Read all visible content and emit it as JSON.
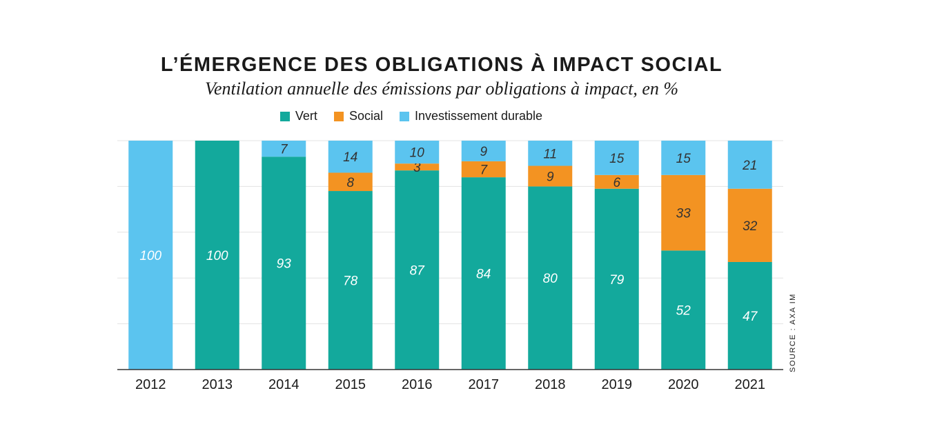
{
  "title": "L’ÉMERGENCE DES OBLIGATIONS À IMPACT SOCIAL",
  "subtitle": "Ventilation annuelle des émissions par obligations à impact, en %",
  "source": "SOURCE : AXA IM",
  "colors": {
    "vert": "#13a99c",
    "social": "#f39322",
    "durable": "#5bc4ef",
    "grid": "#e3e3e3",
    "axis": "#333333"
  },
  "legend": [
    {
      "label": "Vert",
      "color": "#13a99c"
    },
    {
      "label": "Social",
      "color": "#f39322"
    },
    {
      "label": "Investissement durable",
      "color": "#5bc4ef"
    }
  ],
  "chart_data": {
    "type": "bar",
    "stacked": true,
    "categories": [
      "2012",
      "2013",
      "2014",
      "2015",
      "2016",
      "2017",
      "2018",
      "2019",
      "2020",
      "2021"
    ],
    "series": [
      {
        "name": "Vert",
        "values": [
          0,
          100,
          93,
          78,
          87,
          84,
          80,
          79,
          52,
          47
        ]
      },
      {
        "name": "Social",
        "values": [
          0,
          0,
          0,
          8,
          3,
          7,
          9,
          6,
          33,
          32
        ]
      },
      {
        "name": "Investissement durable",
        "values": [
          100,
          0,
          7,
          14,
          10,
          9,
          11,
          15,
          15,
          21
        ]
      }
    ],
    "ylim": [
      0,
      100
    ],
    "grid": true,
    "legend_position": "top-center"
  }
}
